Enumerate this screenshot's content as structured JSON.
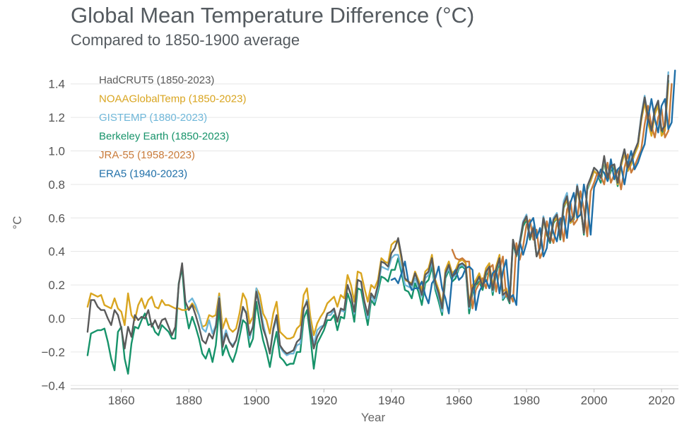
{
  "chart_data": {
    "type": "line",
    "title": "Global Mean Temperature Difference (°C)",
    "subtitle": "Compared to 1850-1900 average",
    "xlabel": "Year",
    "ylabel": "°C",
    "xlim": [
      1845,
      2025
    ],
    "ylim": [
      -0.42,
      1.5
    ],
    "xticks": [
      1860,
      1880,
      1900,
      1920,
      1940,
      1960,
      1980,
      2000,
      2020
    ],
    "yticks": [
      -0.4,
      -0.2,
      0.0,
      0.2,
      0.4,
      0.6,
      0.8,
      1.0,
      1.2,
      1.4
    ],
    "ytick_labels": [
      "−0.4",
      "−0.2",
      "0.0",
      "0.2",
      "0.4",
      "0.6",
      "0.8",
      "1.0",
      "1.2",
      "1.4"
    ],
    "grid": true,
    "legend_position": "top-left",
    "series": [
      {
        "name": "HadCRUT5 (1850-2023)",
        "color": "#5a5a5a",
        "x_start": 1850,
        "values": [
          -0.08,
          0.11,
          0.11,
          0.07,
          0.05,
          0.05,
          0.0,
          -0.04,
          0.05,
          0.02,
          -0.06,
          -0.18,
          -0.05,
          -0.11,
          0.02,
          -0.01,
          0.01,
          0.0,
          0.05,
          -0.05,
          -0.01,
          -0.06,
          -0.01,
          0.0,
          -0.05,
          -0.1,
          -0.05,
          0.2,
          0.33,
          0.1,
          0.05,
          0.08,
          0.02,
          -0.05,
          -0.13,
          -0.15,
          -0.09,
          -0.12,
          -0.05,
          0.12,
          -0.17,
          -0.09,
          -0.14,
          -0.17,
          -0.13,
          -0.04,
          0.07,
          0.03,
          -0.1,
          -0.05,
          0.16,
          0.06,
          -0.06,
          -0.12,
          -0.21,
          -0.06,
          0.02,
          -0.16,
          -0.19,
          -0.21,
          -0.2,
          -0.19,
          -0.14,
          -0.12,
          0.06,
          0.1,
          -0.06,
          -0.18,
          -0.11,
          -0.07,
          -0.04,
          0.03,
          0.04,
          0.06,
          -0.02,
          0.06,
          0.05,
          0.2,
          0.14,
          0.04,
          0.23,
          0.22,
          0.1,
          0.02,
          0.15,
          0.12,
          0.2,
          0.34,
          0.33,
          0.31,
          0.39,
          0.42,
          0.48,
          0.37,
          0.24,
          0.22,
          0.2,
          0.27,
          0.21,
          0.14,
          0.26,
          0.28,
          0.36,
          0.21,
          0.15,
          0.06,
          0.27,
          0.32,
          0.25,
          0.27,
          0.32,
          0.33,
          0.31,
          0.07,
          0.18,
          0.21,
          0.25,
          0.19,
          0.28,
          0.31,
          0.17,
          0.29,
          0.36,
          0.14,
          0.16,
          0.1,
          0.47,
          0.38,
          0.45,
          0.57,
          0.61,
          0.48,
          0.54,
          0.37,
          0.42,
          0.6,
          0.51,
          0.46,
          0.59,
          0.62,
          0.48,
          0.68,
          0.73,
          0.58,
          0.61,
          0.79,
          0.68,
          0.51,
          0.79,
          0.84,
          0.9,
          0.88,
          0.84,
          0.97,
          0.84,
          0.91,
          0.92,
          0.81,
          0.93,
          1.01,
          0.9,
          0.94,
          1.0,
          1.05,
          1.2,
          1.32,
          1.2,
          1.12,
          1.25,
          1.3,
          1.12,
          1.15,
          1.45
        ]
      },
      {
        "name": "NOAAGlobalTemp (1850-2023)",
        "color": "#d9a520",
        "x_start": 1850,
        "values": [
          0.07,
          0.15,
          0.14,
          0.13,
          0.14,
          0.08,
          0.07,
          0.06,
          0.12,
          0.06,
          0.04,
          -0.04,
          0.15,
          0.02,
          -0.01,
          0.08,
          0.12,
          0.06,
          0.11,
          0.13,
          0.07,
          0.06,
          0.11,
          0.08,
          0.08,
          0.07,
          0.06,
          0.06,
          0.05,
          0.05,
          0.06,
          0.09,
          0.06,
          0.02,
          -0.05,
          -0.04,
          0.02,
          0.01,
          0.02,
          0.15,
          -0.06,
          0.0,
          -0.06,
          -0.08,
          -0.06,
          0.03,
          0.15,
          0.11,
          -0.03,
          0.01,
          0.18,
          0.14,
          0.03,
          -0.01,
          -0.09,
          0.03,
          0.1,
          -0.08,
          -0.1,
          -0.12,
          -0.12,
          -0.11,
          -0.06,
          -0.04,
          0.14,
          0.18,
          0.01,
          -0.1,
          -0.03,
          0.01,
          0.04,
          0.09,
          0.11,
          0.13,
          0.07,
          0.14,
          0.12,
          0.26,
          0.2,
          0.1,
          0.28,
          0.27,
          0.18,
          0.1,
          0.2,
          0.18,
          0.23,
          0.36,
          0.34,
          0.33,
          0.44,
          0.46,
          0.46,
          0.35,
          0.23,
          0.22,
          0.21,
          0.28,
          0.23,
          0.17,
          0.28,
          0.3,
          0.38,
          0.23,
          0.17,
          0.08,
          0.29,
          0.34,
          0.27,
          0.29,
          0.34,
          0.35,
          0.33,
          0.09,
          0.2,
          0.23,
          0.27,
          0.21,
          0.3,
          0.33,
          0.19,
          0.31,
          0.38,
          0.16,
          0.18,
          0.12,
          0.47,
          0.39,
          0.45,
          0.57,
          0.6,
          0.48,
          0.54,
          0.37,
          0.42,
          0.59,
          0.51,
          0.46,
          0.58,
          0.6,
          0.48,
          0.67,
          0.71,
          0.57,
          0.6,
          0.78,
          0.66,
          0.51,
          0.78,
          0.82,
          0.88,
          0.86,
          0.83,
          0.95,
          0.83,
          0.9,
          0.91,
          0.8,
          0.91,
          0.99,
          0.88,
          0.92,
          0.98,
          1.03,
          1.18,
          1.29,
          1.17,
          1.09,
          1.22,
          1.27,
          1.09,
          1.12,
          1.4
        ]
      },
      {
        "name": "GISTEMP (1880-2023)",
        "color": "#6fb7d9",
        "x_start": 1880,
        "values": [
          0.1,
          0.12,
          0.08,
          0.02,
          -0.06,
          -0.08,
          -0.01,
          -0.09,
          -0.04,
          0.13,
          -0.14,
          -0.07,
          -0.14,
          -0.16,
          -0.13,
          -0.05,
          0.06,
          0.04,
          -0.12,
          -0.04,
          0.18,
          0.08,
          -0.03,
          -0.12,
          -0.21,
          -0.07,
          0.0,
          -0.17,
          -0.2,
          -0.22,
          -0.21,
          -0.21,
          -0.16,
          -0.15,
          0.05,
          0.11,
          -0.04,
          -0.16,
          -0.07,
          -0.05,
          -0.04,
          0.02,
          0.02,
          0.05,
          -0.01,
          0.05,
          0.04,
          0.2,
          0.14,
          0.03,
          0.23,
          0.22,
          0.09,
          0.0,
          0.14,
          0.1,
          0.18,
          0.31,
          0.3,
          0.29,
          0.36,
          0.38,
          0.38,
          0.3,
          0.2,
          0.19,
          0.18,
          0.24,
          0.19,
          0.13,
          0.24,
          0.26,
          0.34,
          0.19,
          0.13,
          0.04,
          0.26,
          0.3,
          0.24,
          0.26,
          0.31,
          0.32,
          0.3,
          0.06,
          0.17,
          0.21,
          0.24,
          0.19,
          0.27,
          0.3,
          0.16,
          0.28,
          0.35,
          0.12,
          0.15,
          0.1,
          0.47,
          0.38,
          0.46,
          0.58,
          0.62,
          0.49,
          0.55,
          0.37,
          0.43,
          0.61,
          0.52,
          0.47,
          0.6,
          0.63,
          0.49,
          0.7,
          0.75,
          0.6,
          0.62,
          0.8,
          0.68,
          0.51,
          0.78,
          0.84,
          0.9,
          0.88,
          0.83,
          0.96,
          0.84,
          0.9,
          0.92,
          0.81,
          0.93,
          1.01,
          0.9,
          0.95,
          1.0,
          1.05,
          1.21,
          1.33,
          1.2,
          1.12,
          1.25,
          1.3,
          1.12,
          1.16,
          1.47
        ]
      },
      {
        "name": "Berkeley Earth (1850-2023)",
        "color": "#17936a",
        "x_start": 1850,
        "values": [
          -0.22,
          -0.09,
          -0.08,
          -0.07,
          -0.07,
          -0.06,
          -0.14,
          -0.24,
          -0.31,
          -0.08,
          -0.05,
          -0.24,
          -0.33,
          -0.15,
          -0.05,
          -0.06,
          -0.01,
          0.03,
          -0.04,
          -0.03,
          -0.08,
          -0.1,
          -0.04,
          -0.06,
          -0.08,
          -0.12,
          -0.12,
          0.21,
          0.3,
          0.05,
          -0.06,
          0.01,
          -0.05,
          -0.12,
          -0.21,
          -0.24,
          -0.18,
          -0.26,
          -0.16,
          0.06,
          -0.22,
          -0.16,
          -0.22,
          -0.26,
          -0.2,
          -0.11,
          -0.01,
          -0.03,
          -0.17,
          -0.12,
          0.1,
          -0.03,
          -0.13,
          -0.2,
          -0.29,
          -0.17,
          -0.08,
          -0.23,
          -0.25,
          -0.28,
          -0.27,
          -0.27,
          -0.2,
          -0.2,
          0.0,
          0.05,
          -0.11,
          -0.3,
          -0.15,
          -0.11,
          -0.07,
          -0.01,
          -0.01,
          0.02,
          -0.07,
          0.01,
          0.0,
          0.15,
          0.09,
          -0.02,
          0.18,
          0.17,
          0.06,
          -0.04,
          0.11,
          0.08,
          0.16,
          0.25,
          0.24,
          0.22,
          0.29,
          0.29,
          0.36,
          0.27,
          0.17,
          0.16,
          0.12,
          0.21,
          0.16,
          0.08,
          0.21,
          0.23,
          0.31,
          0.17,
          0.1,
          0.02,
          0.24,
          0.29,
          0.22,
          0.24,
          0.3,
          0.31,
          0.29,
          0.03,
          0.15,
          0.2,
          0.22,
          0.17,
          0.26,
          0.28,
          0.14,
          0.27,
          0.33,
          0.11,
          0.14,
          0.09,
          0.45,
          0.37,
          0.44,
          0.55,
          0.59,
          0.47,
          0.53,
          0.37,
          0.42,
          0.59,
          0.5,
          0.45,
          0.57,
          0.6,
          0.47,
          0.66,
          0.71,
          0.57,
          0.59,
          0.78,
          0.67,
          0.5,
          0.77,
          0.82,
          0.88,
          0.86,
          0.81,
          0.94,
          0.82,
          0.88,
          0.9,
          0.79,
          0.91,
          0.99,
          0.88,
          0.92,
          0.98,
          1.03,
          1.19,
          1.3,
          1.18,
          1.1,
          1.22,
          1.28,
          1.1,
          1.14,
          1.42
        ]
      },
      {
        "name": "JRA-55 (1958-2023)",
        "color": "#c97b3a",
        "x_start": 1958,
        "values": [
          0.41,
          0.36,
          0.35,
          0.36,
          0.34,
          0.34,
          0.06,
          0.17,
          0.21,
          0.24,
          0.18,
          0.3,
          0.32,
          0.16,
          0.29,
          0.37,
          0.13,
          0.15,
          0.1,
          0.45,
          0.35,
          0.43,
          0.56,
          0.59,
          0.47,
          0.53,
          0.36,
          0.41,
          0.58,
          0.5,
          0.45,
          0.57,
          0.6,
          0.46,
          0.65,
          0.7,
          0.56,
          0.59,
          0.76,
          0.65,
          0.49,
          0.76,
          0.81,
          0.87,
          0.85,
          0.8,
          0.93,
          0.81,
          0.86,
          0.89,
          0.77,
          0.9,
          0.98,
          0.87,
          0.91,
          0.96,
          1.01,
          1.16,
          1.27,
          1.15,
          1.08,
          1.2,
          1.25,
          1.08,
          1.12,
          1.4
        ]
      },
      {
        "name": "ERA5 (1940-2023)",
        "color": "#1f6fa8",
        "x_start": 1940,
        "values": [
          0.23,
          0.24,
          0.21,
          0.27,
          0.34,
          0.22,
          0.17,
          0.18,
          0.18,
          0.22,
          0.14,
          0.09,
          0.21,
          0.24,
          0.31,
          0.18,
          0.12,
          0.03,
          0.25,
          0.29,
          0.23,
          0.25,
          0.3,
          0.31,
          0.29,
          0.05,
          0.16,
          0.2,
          0.23,
          0.18,
          0.27,
          0.29,
          0.15,
          0.28,
          0.35,
          0.12,
          0.14,
          0.08,
          0.46,
          0.38,
          0.45,
          0.57,
          0.6,
          0.48,
          0.54,
          0.37,
          0.42,
          0.6,
          0.51,
          0.46,
          0.59,
          0.61,
          0.48,
          0.69,
          0.75,
          0.6,
          0.62,
          0.8,
          0.68,
          0.5,
          0.78,
          0.83,
          0.89,
          0.87,
          0.82,
          0.95,
          0.83,
          0.89,
          0.91,
          0.8,
          0.92,
          1.0,
          0.89,
          0.93,
          0.99,
          1.04,
          1.2,
          1.31,
          1.19,
          1.11,
          1.27,
          1.31,
          1.13,
          1.17,
          1.48
        ]
      }
    ]
  }
}
